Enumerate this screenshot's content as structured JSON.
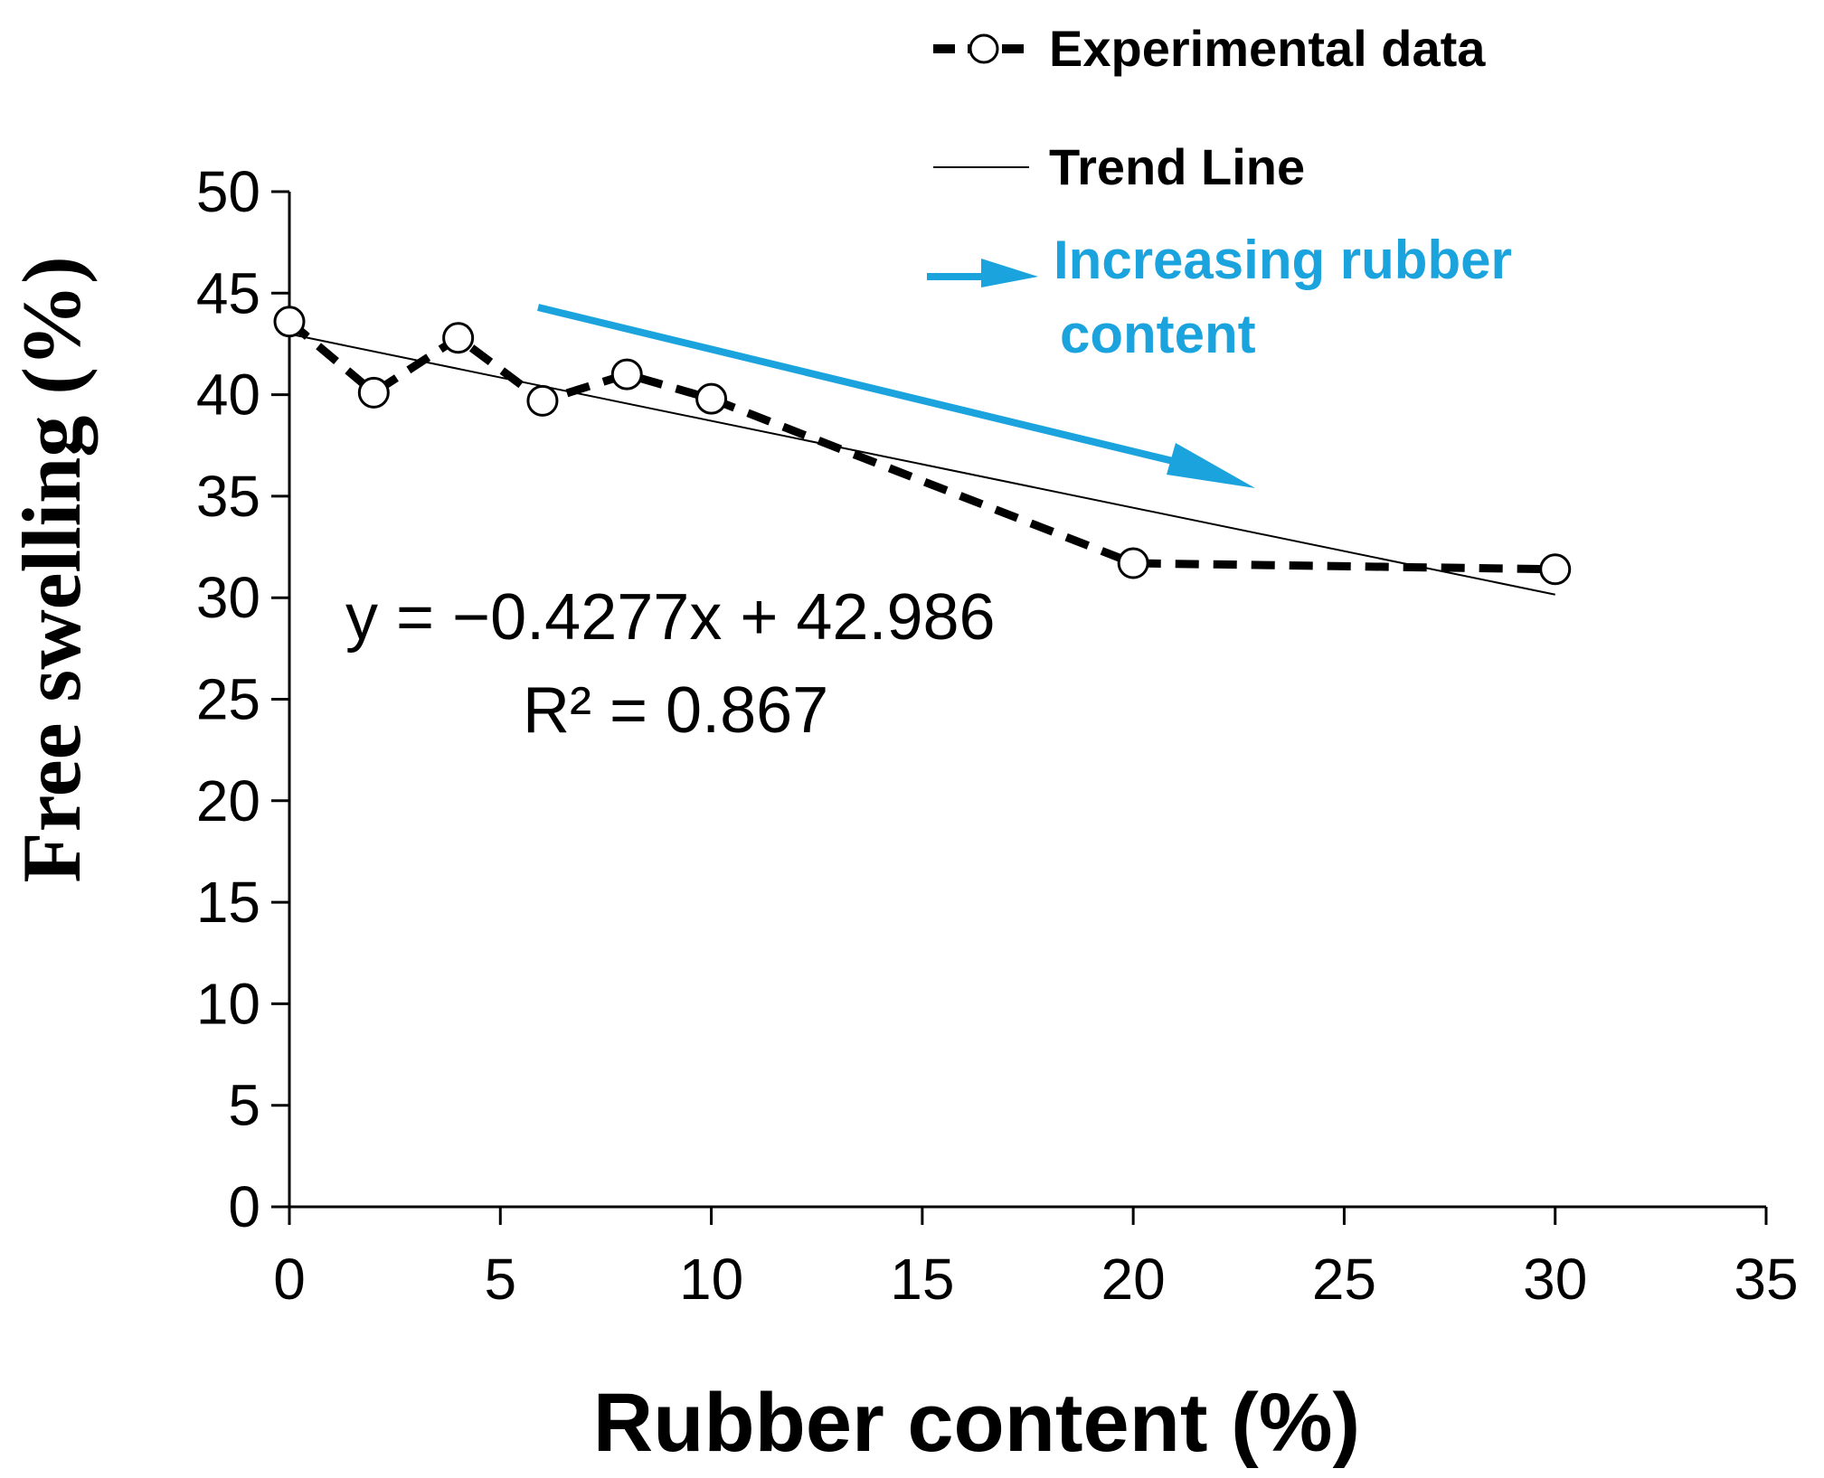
{
  "chart_data": {
    "type": "line",
    "title": "",
    "xlabel": "Rubber content (%)",
    "ylabel": "Free swelling (%)",
    "xlim": [
      0,
      35
    ],
    "ylim": [
      0,
      50
    ],
    "x_ticks": [
      0,
      5,
      10,
      15,
      20,
      25,
      30,
      35
    ],
    "y_ticks": [
      0,
      5,
      10,
      15,
      20,
      25,
      30,
      35,
      40,
      45,
      50
    ],
    "grid": false,
    "legend_position": "top-right",
    "series": [
      {
        "name": "Experimental data",
        "style": "dashed-with-open-circles",
        "x": [
          0,
          2,
          4,
          6,
          8,
          10,
          20,
          30
        ],
        "y": [
          43.6,
          40.1,
          42.8,
          39.7,
          41.0,
          39.8,
          31.7,
          31.4
        ]
      },
      {
        "name": "Trend Line",
        "style": "thin-solid",
        "x": [
          0,
          30
        ],
        "y": [
          42.986,
          30.155
        ],
        "slope": -0.4277,
        "intercept": 42.986
      }
    ],
    "annotations": {
      "equation": "y = −0.4277x + 42.986",
      "r_squared": "R² = 0.867",
      "arrow_note_line1": "Increasing rubber",
      "arrow_note_line2": "content",
      "arrow_color": "#1AA3DD"
    }
  },
  "colors": {
    "text": "#000000",
    "accent": "#1AA3DD"
  }
}
